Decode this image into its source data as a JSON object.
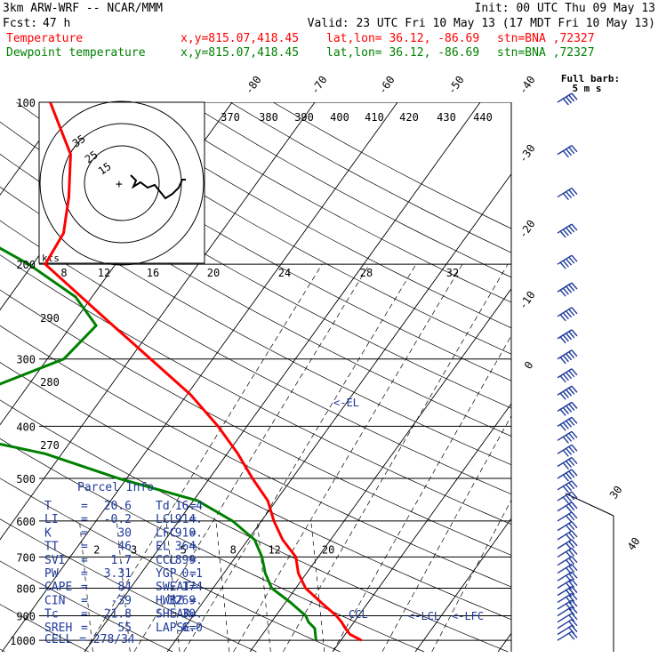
{
  "header": {
    "model": "3km ARW-WRF -- NCAR/MMM",
    "init": "Init: 00 UTC Thu 09 May 13",
    "fcst_label": "Fcst:",
    "fcst_value": "47 h",
    "valid": "Valid: 23 UTC Fri 10 May 13 (17 MDT Fri 10 May 13)",
    "temperature": {
      "label": "Temperature",
      "xy": "x,y=815.07,418.45",
      "latlon": "lat,lon= 36.12, -86.69",
      "stn": "stn=BNA ,72327"
    },
    "dewpoint": {
      "label": "Dewpoint temperature",
      "xy": "x,y=815.07,418.45",
      "latlon": "lat,lon= 36.12, -86.69",
      "stn": "stn=BNA ,72327"
    }
  },
  "colors": {
    "temperature": "#ff0000",
    "dewpoint": "#008000",
    "barbs": "#1e3a9a",
    "parcel": "#1e3a9a",
    "grid": "#000000"
  },
  "chart_data": {
    "type": "skew-T log-P",
    "pressure_ticks_hpa": [
      100,
      200,
      300,
      400,
      500,
      600,
      700,
      800,
      900,
      1000
    ],
    "pressure_tick_labels": [
      "100",
      "200",
      "300",
      "400",
      "500",
      "600",
      "700",
      "800",
      "900",
      "1000"
    ],
    "isotherm_labels": [
      "-80",
      "-70",
      "-60",
      "-50",
      "-40",
      "-30",
      "-20",
      "-10",
      "0",
      "30",
      "40"
    ],
    "theta_labels": [
      "370",
      "380",
      "390",
      "400",
      "410",
      "420",
      "430",
      "440",
      "290",
      "280",
      "270"
    ],
    "mixing_ratio_labels": [
      "2",
      "3",
      "5",
      "8",
      "12",
      "20"
    ],
    "hodograph": {
      "speed_unit": "kts",
      "ring_labels": [
        "15",
        "25",
        "35"
      ],
      "speed_axis_labels": [
        "8",
        "12",
        "16",
        "20",
        "24",
        "28",
        "32"
      ]
    },
    "wind_barb_legend": [
      "Full barb:",
      "5 m s"
    ],
    "markers": {
      "el": "<-EL",
      "ccl": "CCL",
      "lcl": "<-LCL",
      "lfc": "<-LFC"
    },
    "temperature_profile": [
      {
        "p": 1000,
        "t": 22.5
      },
      {
        "p": 975,
        "t": 20.6
      },
      {
        "p": 950,
        "t": 19.5
      },
      {
        "p": 925,
        "t": 18.5
      },
      {
        "p": 900,
        "t": 17.3
      },
      {
        "p": 850,
        "t": 14.3
      },
      {
        "p": 800,
        "t": 11.2
      },
      {
        "p": 750,
        "t": 9.0
      },
      {
        "p": 700,
        "t": 7.3
      },
      {
        "p": 650,
        "t": 4.2
      },
      {
        "p": 600,
        "t": 1.5
      },
      {
        "p": 550,
        "t": -1.0
      },
      {
        "p": 500,
        "t": -4.8
      },
      {
        "p": 450,
        "t": -8.7
      },
      {
        "p": 400,
        "t": -13.5
      },
      {
        "p": 350,
        "t": -19.5
      },
      {
        "p": 300,
        "t": -27.5
      },
      {
        "p": 250,
        "t": -37.0
      },
      {
        "p": 200,
        "t": -48.5
      },
      {
        "p": 175,
        "t": -49.0
      },
      {
        "p": 150,
        "t": -51.5
      },
      {
        "p": 125,
        "t": -55.0
      },
      {
        "p": 100,
        "t": -62.0
      }
    ],
    "dewpoint_profile": [
      {
        "p": 1000,
        "t": 17.0
      },
      {
        "p": 975,
        "t": 16.4
      },
      {
        "p": 950,
        "t": 15.8
      },
      {
        "p": 925,
        "t": 14.5
      },
      {
        "p": 900,
        "t": 13.6
      },
      {
        "p": 850,
        "t": 10.6
      },
      {
        "p": 800,
        "t": 7.1
      },
      {
        "p": 750,
        "t": 5.0
      },
      {
        "p": 700,
        "t": 3.2
      },
      {
        "p": 650,
        "t": 0.8
      },
      {
        "p": 600,
        "t": -3.5
      },
      {
        "p": 550,
        "t": -9.5
      },
      {
        "p": 500,
        "t": -21.0
      },
      {
        "p": 450,
        "t": -32.0
      },
      {
        "p": 400,
        "t": -50.0
      },
      {
        "p": 375,
        "t": -57.0
      },
      {
        "p": 350,
        "t": -46.0
      },
      {
        "p": 300,
        "t": -38.0
      },
      {
        "p": 260,
        "t": -37.0
      },
      {
        "p": 230,
        "t": -42.0
      },
      {
        "p": 200,
        "t": -50.5
      },
      {
        "p": 170,
        "t": -62.0
      },
      {
        "p": 150,
        "t": -65.0
      },
      {
        "p": 130,
        "t": -70.0
      },
      {
        "p": 100,
        "t": -84.0
      }
    ],
    "wind_barbs": [
      {
        "p": 1000,
        "kt": 15
      },
      {
        "p": 975,
        "kt": 15
      },
      {
        "p": 950,
        "kt": 20
      },
      {
        "p": 925,
        "kt": 20
      },
      {
        "p": 900,
        "kt": 20
      },
      {
        "p": 875,
        "kt": 25
      },
      {
        "p": 850,
        "kt": 25
      },
      {
        "p": 825,
        "kt": 25
      },
      {
        "p": 800,
        "kt": 25
      },
      {
        "p": 775,
        "kt": 25
      },
      {
        "p": 750,
        "kt": 25
      },
      {
        "p": 725,
        "kt": 25
      },
      {
        "p": 700,
        "kt": 30
      },
      {
        "p": 675,
        "kt": 30
      },
      {
        "p": 650,
        "kt": 30
      },
      {
        "p": 625,
        "kt": 30
      },
      {
        "p": 600,
        "kt": 30
      },
      {
        "p": 575,
        "kt": 30
      },
      {
        "p": 550,
        "kt": 35
      },
      {
        "p": 525,
        "kt": 35
      },
      {
        "p": 500,
        "kt": 35
      },
      {
        "p": 475,
        "kt": 35
      },
      {
        "p": 450,
        "kt": 40
      },
      {
        "p": 425,
        "kt": 40
      },
      {
        "p": 400,
        "kt": 45
      },
      {
        "p": 375,
        "kt": 45
      },
      {
        "p": 350,
        "kt": 45
      },
      {
        "p": 325,
        "kt": 50
      },
      {
        "p": 300,
        "kt": 50
      },
      {
        "p": 275,
        "kt": 50
      },
      {
        "p": 250,
        "kt": 50
      },
      {
        "p": 225,
        "kt": 45
      },
      {
        "p": 200,
        "kt": 45
      },
      {
        "p": 175,
        "kt": 45
      },
      {
        "p": 150,
        "kt": 40
      },
      {
        "p": 125,
        "kt": 40
      },
      {
        "p": 100,
        "kt": 35
      }
    ]
  },
  "parcel_info": {
    "title": "Parcel Info",
    "rows": [
      [
        "T",
        "=",
        "20.6",
        "Td",
        "=",
        "16.4"
      ],
      [
        "LI",
        "=",
        "-0.2",
        "LCL",
        "=",
        "914."
      ],
      [
        "K",
        "=",
        "30",
        "LFC",
        "=",
        "910."
      ],
      [
        "TT",
        "=",
        "46",
        "EL",
        "=",
        "364."
      ],
      [
        "SVI",
        "=",
        "1.7",
        "CCL",
        "=",
        "899."
      ],
      [
        "PW",
        "=",
        "3.31",
        "YGP",
        "=",
        "0.1"
      ],
      [
        "CAPE",
        "=",
        "84",
        "SWEAT",
        "=",
        "174"
      ],
      [
        "CIN",
        "=",
        "-39",
        "HWBZ",
        "=",
        "3269."
      ],
      [
        "Tc",
        "=",
        "21.8",
        "SHEAR",
        "=",
        "30."
      ],
      [
        "SREH",
        "=",
        "55",
        "LAPSE",
        "=",
        "6.0"
      ]
    ],
    "cell": "CELL = 278/34"
  }
}
